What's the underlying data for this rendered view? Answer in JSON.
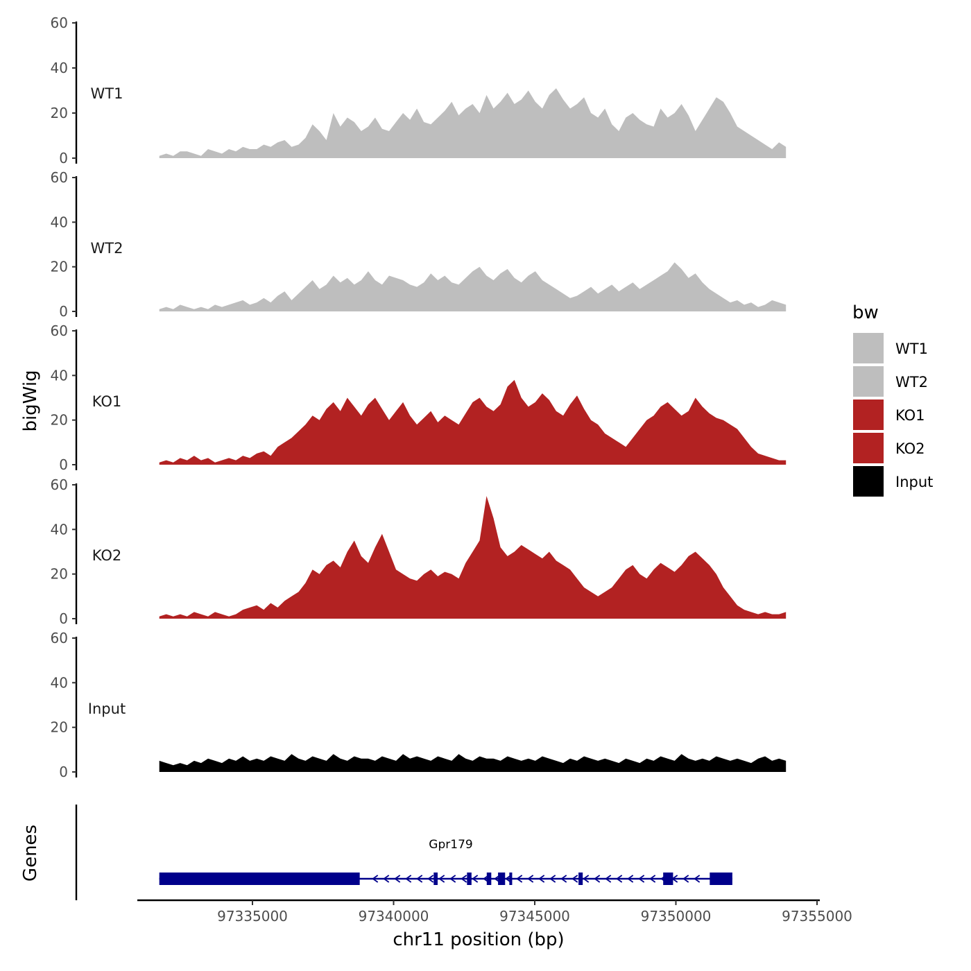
{
  "chart_data": {
    "type": "area",
    "ylabel": "bigWig",
    "xlabel": "chr11 position (bp)",
    "xlim": [
      97330000,
      97355000
    ],
    "x_ticks": [
      97335000,
      97340000,
      97345000,
      97350000,
      97355000
    ],
    "x_tick_labels": [
      "97335000",
      "97340000",
      "97345000",
      "97350000",
      "97355000"
    ],
    "y_ticks": [
      0,
      20,
      40,
      60
    ],
    "y_tick_labels": [
      "0",
      "20",
      "40",
      "60"
    ],
    "ylim": [
      0,
      60
    ],
    "x_start": 97331700,
    "x_end": 97353900,
    "series": [
      {
        "name": "WT1",
        "color": "#BEBEBE",
        "values": [
          1,
          2,
          1,
          3,
          3,
          2,
          1,
          4,
          3,
          2,
          4,
          3,
          5,
          4,
          4,
          6,
          5,
          7,
          8,
          5,
          6,
          9,
          15,
          12,
          8,
          20,
          14,
          18,
          16,
          12,
          14,
          18,
          13,
          12,
          16,
          20,
          17,
          22,
          16,
          15,
          18,
          21,
          25,
          19,
          22,
          24,
          20,
          28,
          22,
          25,
          29,
          24,
          26,
          30,
          25,
          22,
          28,
          31,
          26,
          22,
          24,
          27,
          20,
          18,
          22,
          15,
          12,
          18,
          20,
          17,
          15,
          14,
          22,
          18,
          20,
          24,
          19,
          12,
          17,
          22,
          27,
          25,
          20,
          14,
          12,
          10,
          8,
          6,
          4,
          7,
          5
        ]
      },
      {
        "name": "WT2",
        "color": "#BEBEBE",
        "values": [
          1,
          2,
          1,
          3,
          2,
          1,
          2,
          1,
          3,
          2,
          3,
          4,
          5,
          3,
          4,
          6,
          4,
          7,
          9,
          5,
          8,
          11,
          14,
          10,
          12,
          16,
          13,
          15,
          12,
          14,
          18,
          14,
          12,
          16,
          15,
          14,
          12,
          11,
          13,
          17,
          14,
          16,
          13,
          12,
          15,
          18,
          20,
          16,
          14,
          17,
          19,
          15,
          13,
          16,
          18,
          14,
          12,
          10,
          8,
          6,
          7,
          9,
          11,
          8,
          10,
          12,
          9,
          11,
          13,
          10,
          12,
          14,
          16,
          18,
          22,
          19,
          15,
          17,
          13,
          10,
          8,
          6,
          4,
          5,
          3,
          4,
          2,
          3,
          5,
          4,
          3
        ]
      },
      {
        "name": "KO1",
        "color": "#B22222",
        "values": [
          1,
          2,
          1,
          3,
          2,
          4,
          2,
          3,
          1,
          2,
          3,
          2,
          4,
          3,
          5,
          6,
          4,
          8,
          10,
          12,
          15,
          18,
          22,
          20,
          25,
          28,
          24,
          30,
          26,
          22,
          27,
          30,
          25,
          20,
          24,
          28,
          22,
          18,
          21,
          24,
          19,
          22,
          20,
          18,
          23,
          28,
          30,
          26,
          24,
          27,
          35,
          38,
          30,
          26,
          28,
          32,
          29,
          24,
          22,
          27,
          31,
          25,
          20,
          18,
          14,
          12,
          10,
          8,
          12,
          16,
          20,
          22,
          26,
          28,
          25,
          22,
          24,
          30,
          26,
          23,
          21,
          20,
          18,
          16,
          12,
          8,
          5,
          4,
          3,
          2,
          2
        ]
      },
      {
        "name": "KO2",
        "color": "#B22222",
        "values": [
          1,
          2,
          1,
          2,
          1,
          3,
          2,
          1,
          3,
          2,
          1,
          2,
          4,
          5,
          6,
          4,
          7,
          5,
          8,
          10,
          12,
          16,
          22,
          20,
          24,
          26,
          23,
          30,
          35,
          28,
          25,
          32,
          38,
          30,
          22,
          20,
          18,
          17,
          20,
          22,
          19,
          21,
          20,
          18,
          25,
          30,
          35,
          55,
          45,
          32,
          28,
          30,
          33,
          31,
          29,
          27,
          30,
          26,
          24,
          22,
          18,
          14,
          12,
          10,
          12,
          14,
          18,
          22,
          24,
          20,
          18,
          22,
          25,
          23,
          21,
          24,
          28,
          30,
          27,
          24,
          20,
          14,
          10,
          6,
          4,
          3,
          2,
          3,
          2,
          2,
          3
        ]
      },
      {
        "name": "Input",
        "color": "#000000",
        "values": [
          5,
          4,
          3,
          4,
          3,
          5,
          4,
          6,
          5,
          4,
          6,
          5,
          7,
          5,
          6,
          5,
          7,
          6,
          5,
          8,
          6,
          5,
          7,
          6,
          5,
          8,
          6,
          5,
          7,
          6,
          6,
          5,
          7,
          6,
          5,
          8,
          6,
          7,
          6,
          5,
          7,
          6,
          5,
          8,
          6,
          5,
          7,
          6,
          6,
          5,
          7,
          6,
          5,
          6,
          5,
          7,
          6,
          5,
          4,
          6,
          5,
          7,
          6,
          5,
          6,
          5,
          4,
          6,
          5,
          4,
          6,
          5,
          7,
          6,
          5,
          8,
          6,
          5,
          6,
          5,
          7,
          6,
          5,
          6,
          5,
          4,
          6,
          7,
          5,
          6,
          5
        ]
      }
    ],
    "genes": {
      "panel_label": "Genes",
      "name": "Gpr179",
      "color": "#00008B",
      "start": 97331700,
      "end": 97352000,
      "strand": "-",
      "exons": [
        [
          97331700,
          97338800
        ],
        [
          97341420,
          97341560
        ],
        [
          97342600,
          97342760
        ],
        [
          97343300,
          97343460
        ],
        [
          97343700,
          97343950
        ],
        [
          97344100,
          97344200
        ],
        [
          97346550,
          97346700
        ],
        [
          97349550,
          97349900
        ],
        [
          97351200,
          97352000
        ]
      ]
    },
    "legend": {
      "title": "bw",
      "position": "right",
      "entries": [
        {
          "label": "WT1",
          "color": "#BEBEBE"
        },
        {
          "label": "WT2",
          "color": "#BEBEBE"
        },
        {
          "label": "KO1",
          "color": "#B22222"
        },
        {
          "label": "KO2",
          "color": "#B22222"
        },
        {
          "label": "Input",
          "color": "#000000"
        }
      ]
    }
  }
}
